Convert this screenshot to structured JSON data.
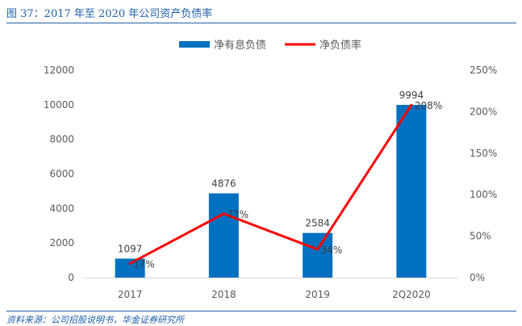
{
  "figure": {
    "title": "图 37：2017 年至 2020 年公司资产负债率",
    "source": "资料来源：公司招股说明书，华金证券研究所"
  },
  "colors": {
    "bar": "#0070c0",
    "line": "#ff0000",
    "accent": "#1f5fa8"
  },
  "chart_data": {
    "type": "bar+line",
    "categories": [
      "2017",
      "2018",
      "2019",
      "2Q2020"
    ],
    "series": [
      {
        "name": "净有息负债",
        "type": "bar",
        "axis": "left",
        "values": [
          1097,
          4876,
          2584,
          9994
        ],
        "labels": [
          "1097",
          "4876",
          "2584",
          "9994"
        ]
      },
      {
        "name": "净负债率",
        "type": "line",
        "axis": "right",
        "values": [
          17,
          77,
          34,
          208
        ],
        "labels": [
          "17%",
          "77%",
          "34%",
          "208%"
        ]
      }
    ],
    "y_left": {
      "min": 0,
      "max": 12000,
      "ticks": [
        "0",
        "2000",
        "4000",
        "6000",
        "8000",
        "10000",
        "12000"
      ]
    },
    "y_right": {
      "min": 0,
      "max": 250,
      "ticks": [
        "0%",
        "50%",
        "100%",
        "150%",
        "200%",
        "250%"
      ]
    },
    "legend_position": "top-center",
    "grid": false
  }
}
